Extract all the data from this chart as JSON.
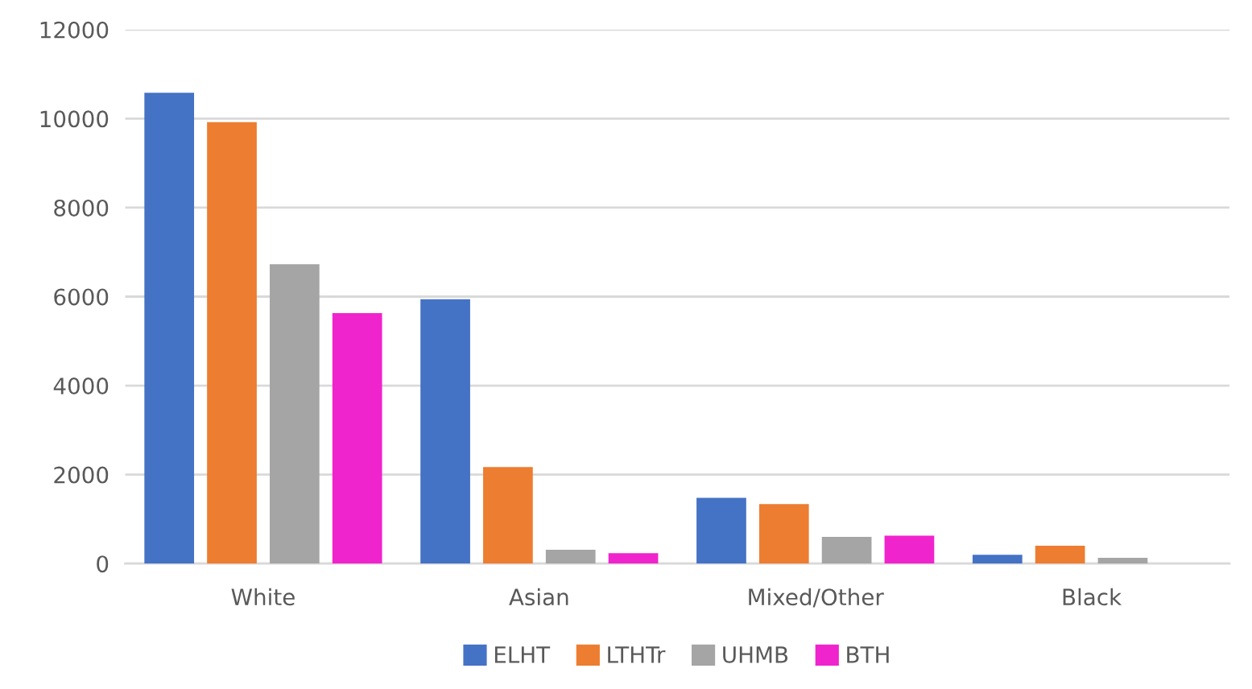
{
  "chart_data": {
    "type": "bar",
    "categories": [
      "White",
      "Asian",
      "Mixed/Other",
      "Black"
    ],
    "series": [
      {
        "name": "ELHT",
        "color": "#4472c4",
        "values": [
          10580,
          5940,
          1480,
          200
        ]
      },
      {
        "name": "LTHTr",
        "color": "#ed7d31",
        "values": [
          9920,
          2170,
          1340,
          400
        ]
      },
      {
        "name": "UHMB",
        "color": "#a5a5a5",
        "values": [
          6730,
          310,
          600,
          130
        ]
      },
      {
        "name": "BTH",
        "color": "#f024cc",
        "values": [
          5630,
          235,
          630,
          null
        ]
      }
    ],
    "ylim": [
      0,
      12000
    ],
    "yticks": [
      0,
      2000,
      4000,
      6000,
      8000,
      10000,
      12000
    ],
    "grid": "y",
    "legend": "bottom"
  }
}
